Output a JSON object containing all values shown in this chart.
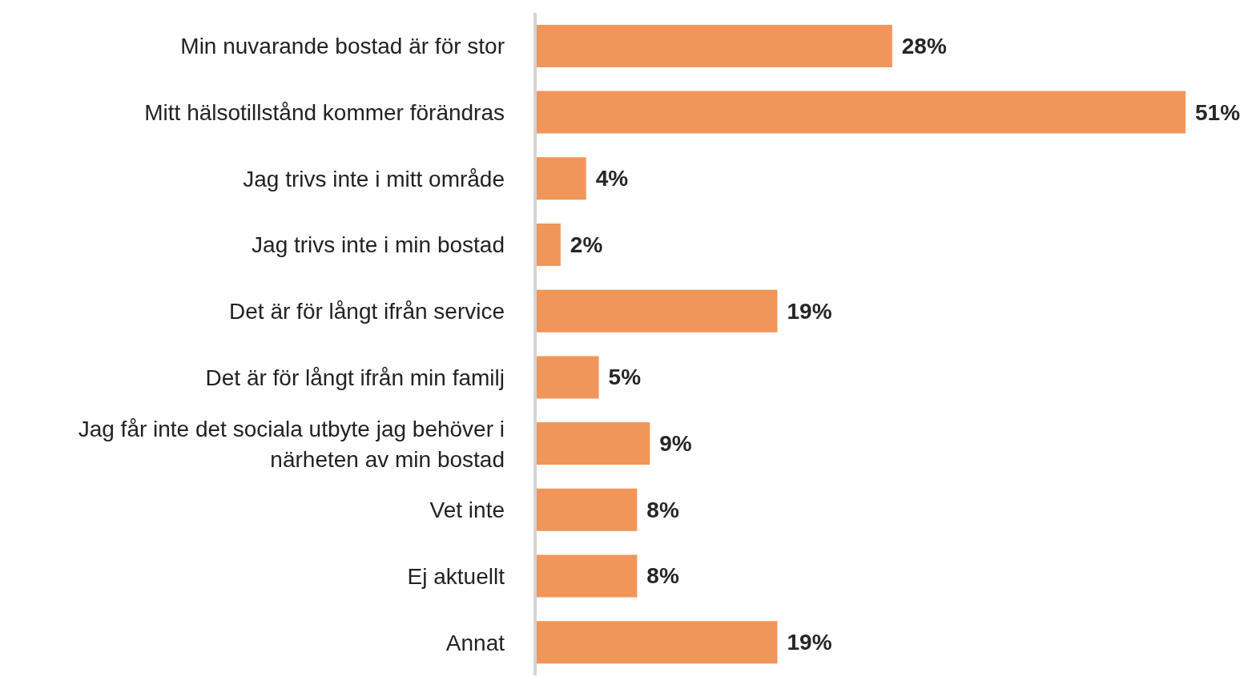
{
  "chart_data": {
    "type": "bar",
    "orientation": "horizontal",
    "categories": [
      "Min nuvarande bostad är för stor",
      "Mitt hälsotillstånd kommer förändras",
      "Jag trivs inte i mitt område",
      "Jag trivs inte i min bostad",
      "Det är för långt ifrån service",
      "Det är för långt ifrån min familj",
      "Jag får inte det sociala utbyte jag behöver i närheten av min bostad",
      "Vet inte",
      "Ej aktuellt",
      "Annat"
    ],
    "values": [
      28,
      51,
      4,
      2,
      19,
      5,
      9,
      8,
      8,
      19
    ],
    "value_labels": [
      "28%",
      "51%",
      "4%",
      "2%",
      "19%",
      "5%",
      "9%",
      "8%",
      "8%",
      "19%"
    ],
    "color": "#f0965a",
    "grid": false,
    "legend": false
  }
}
